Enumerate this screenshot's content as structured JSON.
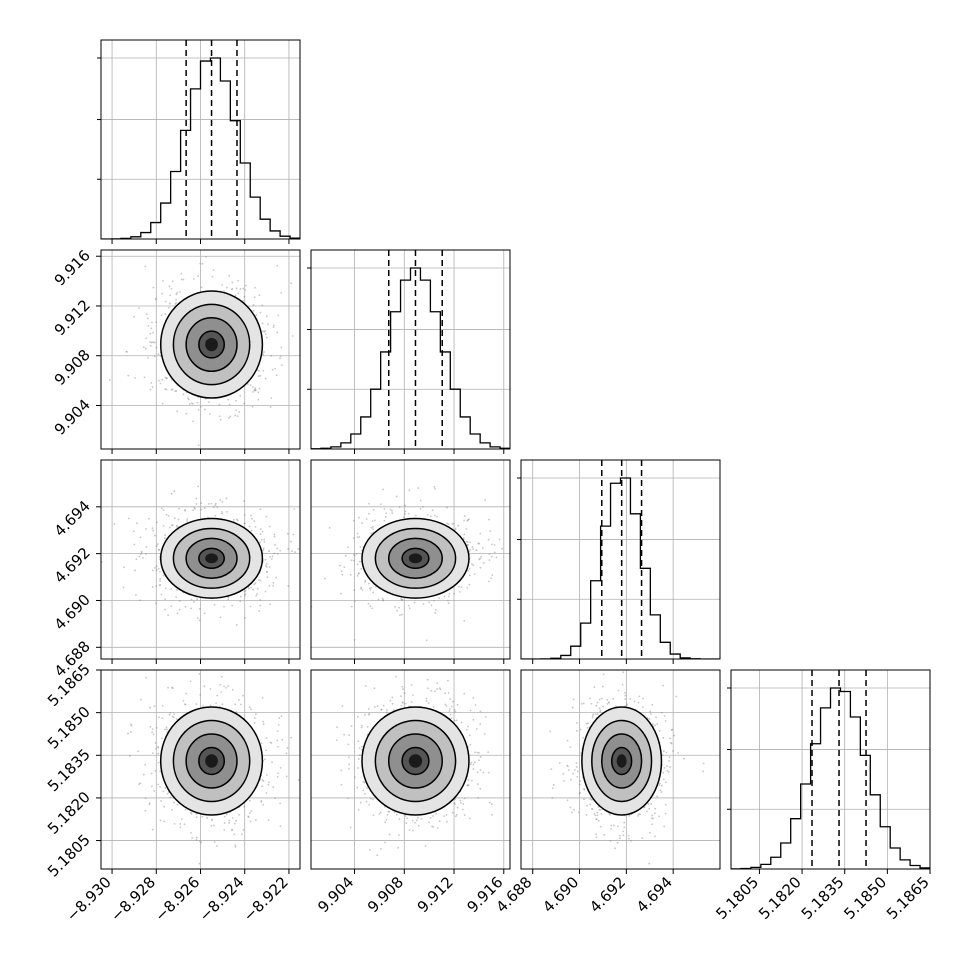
{
  "chart_data": {
    "type": "corner",
    "title": "",
    "grid": true,
    "parameters": [
      {
        "index": 0,
        "mean": -8.9255,
        "sigma": 0.00115,
        "range": [
          -8.9305,
          -8.9215
        ],
        "quantiles": [
          -8.92665,
          -8.9255,
          -8.92435
        ],
        "ticks": [
          -8.93,
          -8.928,
          -8.926,
          -8.924,
          -8.922
        ],
        "tick_labels": [
          "−8.930",
          "−8.928",
          "−8.926",
          "−8.924",
          "−8.922"
        ]
      },
      {
        "index": 1,
        "mean": 9.9089,
        "sigma": 0.00215,
        "range": [
          9.9005,
          9.9165
        ],
        "quantiles": [
          9.90675,
          9.9089,
          9.91105
        ],
        "ticks": [
          9.904,
          9.908,
          9.912,
          9.916
        ],
        "tick_labels": [
          "9.904",
          "9.908",
          "9.912",
          "9.916"
        ]
      },
      {
        "index": 2,
        "mean": 4.6918,
        "sigma": 0.00085,
        "range": [
          4.6875,
          4.696
        ],
        "quantiles": [
          4.69095,
          4.6918,
          4.69265
        ],
        "ticks": [
          4.688,
          4.69,
          4.692,
          4.694
        ],
        "tick_labels": [
          "4.688",
          "4.690",
          "4.692",
          "4.694"
        ]
      },
      {
        "index": 3,
        "mean": 5.1833,
        "sigma": 0.00095,
        "range": [
          5.1795,
          5.1865
        ],
        "quantiles": [
          5.18235,
          5.1833,
          5.18425
        ],
        "ticks": [
          5.1805,
          5.182,
          5.1835,
          5.185,
          5.1865
        ],
        "tick_labels": [
          "5.1805",
          "5.1820",
          "5.1835",
          "5.1850",
          "5.1865"
        ]
      }
    ],
    "histogram_bins": 20,
    "contour_levels_sigma": [
      0.5,
      1.0,
      1.5,
      2.0
    ],
    "colors": {
      "line": "#000000",
      "grid": "#b0b0b0",
      "points": "#808080"
    }
  }
}
